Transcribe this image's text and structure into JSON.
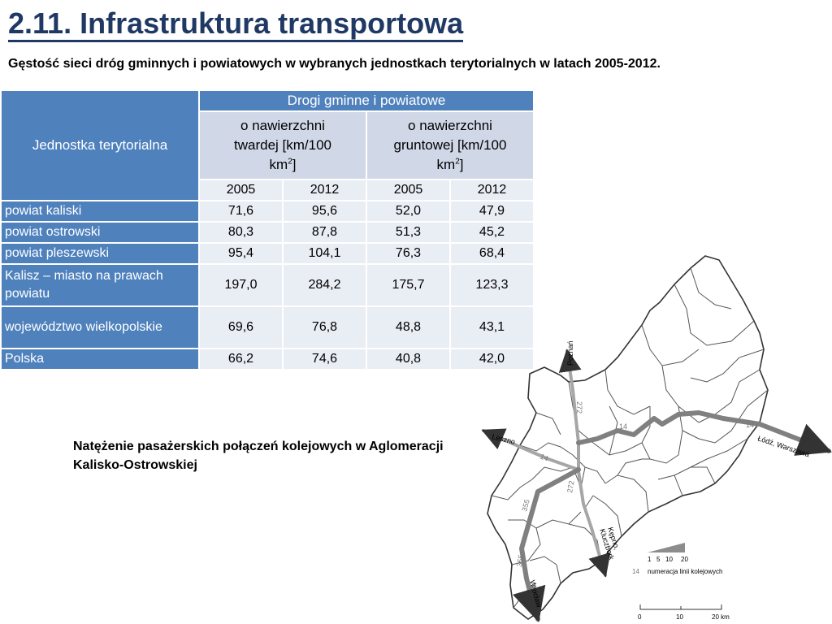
{
  "title": "2.11. Infrastruktura transportowa",
  "subtitle": "Gęstość sieci dróg gminnych i powiatowych w wybranych jednostkach terytorialnych w latach 2005-2012.",
  "table": {
    "unit_header": "Jednostka terytorialna",
    "group_header": "Drogi gminne i powiatowe",
    "col_a": {
      "line1": "o nawierzchni",
      "line2": "twardej [km/100",
      "line3": "km",
      "sup": "2",
      "tail": "]"
    },
    "col_b": {
      "line1": "o nawierzchni",
      "line2": "gruntowej [km/100",
      "line3": "km",
      "sup": "2",
      "tail": "]"
    },
    "years": [
      "2005",
      "2012",
      "2005",
      "2012"
    ],
    "rows": [
      {
        "name": "powiat kaliski",
        "values": [
          "71,6",
          "95,6",
          "52,0",
          "47,9"
        ]
      },
      {
        "name": "powiat ostrowski",
        "values": [
          "80,3",
          "87,8",
          "51,3",
          "45,2"
        ]
      },
      {
        "name": "powiat pleszewski",
        "values": [
          "95,4",
          "104,1",
          "76,3",
          "68,4"
        ]
      },
      {
        "name": "Kalisz – miasto na prawach powiatu",
        "values": [
          "197,0",
          "284,2",
          "175,7",
          "123,3"
        ]
      },
      {
        "name": "województwo wielkopolskie",
        "values": [
          "69,6",
          "76,8",
          "48,8",
          "43,1"
        ]
      },
      {
        "name": "Polska",
        "values": [
          "66,2",
          "74,6",
          "40,8",
          "42,0"
        ]
      }
    ]
  },
  "caption": "Natężenie pasażerskich połączeń kolejowych w Aglomeracji Kalisko-Ostrowskiej",
  "map": {
    "dest": {
      "poznan": "Poznań",
      "leszno": "Leszno",
      "lodz": "Łódź, Warszawa",
      "kepno": "Kępno,",
      "kluczbork": "Kluczbork",
      "wroclaw": "Wrocław"
    },
    "lines": {
      "l272a": "272",
      "l272b": "272",
      "l14a": "14",
      "l14b": "14",
      "l14c": "14",
      "l355a": "355",
      "l355b": "355"
    },
    "legend": {
      "scale": [
        "1",
        "5",
        "10",
        "20"
      ],
      "line_num": "14",
      "line_text": "numeracja linii kolejowych",
      "km": [
        "0",
        "10",
        "20 km"
      ]
    },
    "colors": {
      "border": "#333333",
      "rail_main": "#808080",
      "rail_minor": "#a6a6a6",
      "legend_wedge": "#8c8c8c"
    }
  }
}
